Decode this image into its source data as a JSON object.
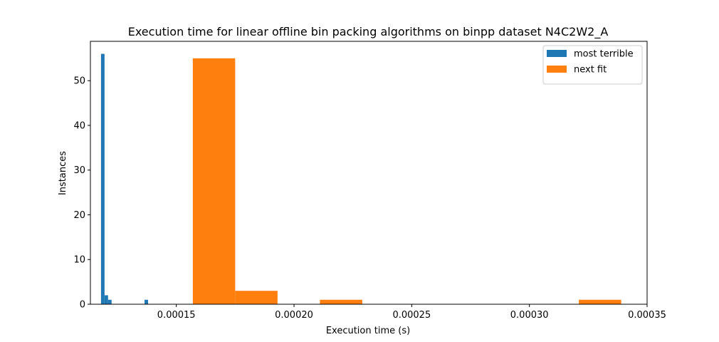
{
  "chart_data": {
    "type": "bar",
    "title": "Execution time for linear offline bin packing algorithms on binpp dataset N4C2W2_A",
    "xlabel": "Execution time (s)",
    "ylabel": "Instances",
    "xlim": [
      0.0001135,
      0.00035
    ],
    "ylim": [
      0,
      58.8
    ],
    "xticks": [
      0.00015,
      0.0002,
      0.00025,
      0.0003,
      0.00035
    ],
    "xtick_labels": [
      "0.00015",
      "0.00020",
      "0.00025",
      "0.00030",
      "0.00035"
    ],
    "yticks": [
      0,
      10,
      20,
      30,
      40,
      50
    ],
    "ytick_labels": [
      "0",
      "10",
      "20",
      "30",
      "40",
      "50"
    ],
    "legend_position": "top-right",
    "grid": false,
    "series": [
      {
        "name": "most terrible",
        "color": "#1f77b4",
        "bins": [
          {
            "x0": 0.000118,
            "x1": 0.0001195,
            "count": 56
          },
          {
            "x0": 0.0001195,
            "x1": 0.000121,
            "count": 2
          },
          {
            "x0": 0.000121,
            "x1": 0.0001225,
            "count": 1
          },
          {
            "x0": 0.0001365,
            "x1": 0.000138,
            "count": 1
          }
        ]
      },
      {
        "name": "next fit",
        "color": "#ff7f0e",
        "bins": [
          {
            "x0": 0.000157,
            "x1": 0.000175,
            "count": 55
          },
          {
            "x0": 0.000175,
            "x1": 0.000193,
            "count": 3
          },
          {
            "x0": 0.000193,
            "x1": 0.000211,
            "count": 0
          },
          {
            "x0": 0.000211,
            "x1": 0.000229,
            "count": 1
          },
          {
            "x0": 0.000229,
            "x1": 0.000247,
            "count": 0
          },
          {
            "x0": 0.000247,
            "x1": 0.000265,
            "count": 0
          },
          {
            "x0": 0.000265,
            "x1": 0.000283,
            "count": 0
          },
          {
            "x0": 0.000283,
            "x1": 0.000301,
            "count": 0
          },
          {
            "x0": 0.000301,
            "x1": 0.000319,
            "count": 0
          },
          {
            "x0": 0.000321,
            "x1": 0.000339,
            "count": 1
          }
        ]
      }
    ]
  }
}
